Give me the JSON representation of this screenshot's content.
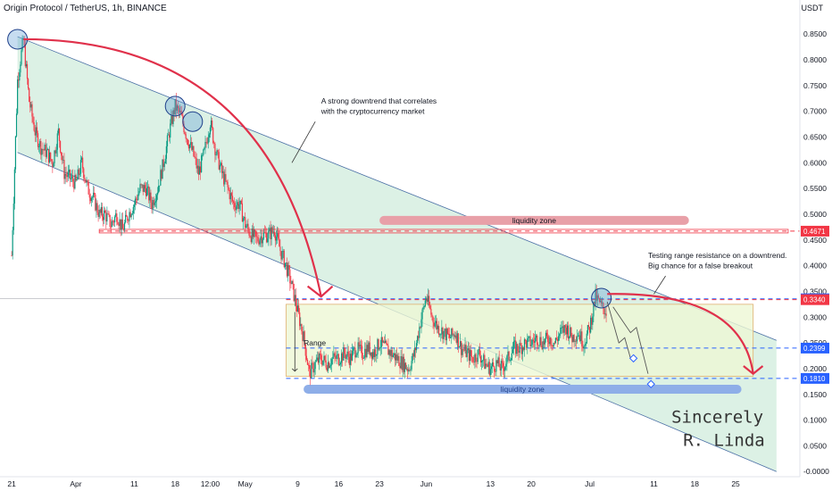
{
  "header": {
    "symbol": "Origin Protocol / TetherUS, 1h, BINANCE",
    "currency": "USDT"
  },
  "chart_data": {
    "type": "candlestick",
    "y_axis": {
      "ticks": [
        -0.0,
        0.05,
        0.1,
        0.15,
        0.2,
        0.25,
        0.3,
        0.35,
        0.4,
        0.45,
        0.5,
        0.55,
        0.6,
        0.65,
        0.7,
        0.75,
        0.8,
        0.85
      ],
      "tick_labels": [
        "-0.0000",
        "0.0500",
        "0.1000",
        "0.1500",
        "0.2000",
        "0.2500",
        "0.3000",
        "0.3500",
        "0.4000",
        "0.4500",
        "0.5000",
        "0.5500",
        "0.6000",
        "0.6500",
        "0.7000",
        "0.7500",
        "0.8000",
        "0.8500"
      ],
      "ylim": [
        -0.01,
        0.885
      ]
    },
    "x_axis": {
      "labels": [
        "21",
        "Apr",
        "11",
        "18",
        "12:00",
        "May",
        "9",
        "16",
        "23",
        "Jun",
        "13",
        "20",
        "Jul",
        "11",
        "18",
        "25"
      ],
      "positions": [
        0,
        11,
        21,
        28,
        34,
        40,
        49,
        56,
        63,
        71,
        82,
        89,
        99,
        110,
        117,
        124
      ],
      "xlim": [
        -2,
        135
      ]
    },
    "price_path": [
      [
        0,
        0.42
      ],
      [
        1,
        0.76
      ],
      [
        2,
        0.84
      ],
      [
        3,
        0.72
      ],
      [
        4,
        0.66
      ],
      [
        5,
        0.63
      ],
      [
        6,
        0.62
      ],
      [
        7,
        0.6
      ],
      [
        8,
        0.66
      ],
      [
        9,
        0.58
      ],
      [
        10,
        0.57
      ],
      [
        11,
        0.56
      ],
      [
        12,
        0.6
      ],
      [
        13,
        0.55
      ],
      [
        14,
        0.53
      ],
      [
        15,
        0.5
      ],
      [
        16,
        0.5
      ],
      [
        17,
        0.48
      ],
      [
        18,
        0.5
      ],
      [
        19,
        0.47
      ],
      [
        20,
        0.5
      ],
      [
        21,
        0.52
      ],
      [
        22,
        0.55
      ],
      [
        23,
        0.55
      ],
      [
        24,
        0.52
      ],
      [
        25,
        0.55
      ],
      [
        26,
        0.6
      ],
      [
        27,
        0.66
      ],
      [
        28,
        0.71
      ],
      [
        29,
        0.69
      ],
      [
        30,
        0.65
      ],
      [
        31,
        0.62
      ],
      [
        32,
        0.58
      ],
      [
        33,
        0.62
      ],
      [
        34,
        0.68
      ],
      [
        35,
        0.62
      ],
      [
        36,
        0.58
      ],
      [
        37,
        0.55
      ],
      [
        38,
        0.52
      ],
      [
        39,
        0.52
      ],
      [
        40,
        0.48
      ],
      [
        41,
        0.46
      ],
      [
        42,
        0.45
      ],
      [
        43,
        0.46
      ],
      [
        44,
        0.46
      ],
      [
        45,
        0.47
      ],
      [
        46,
        0.43
      ],
      [
        47,
        0.4
      ],
      [
        48,
        0.36
      ],
      [
        49,
        0.31
      ],
      [
        50,
        0.26
      ],
      [
        51,
        0.19
      ],
      [
        52,
        0.21
      ],
      [
        53,
        0.22
      ],
      [
        54,
        0.21
      ],
      [
        55,
        0.22
      ],
      [
        56,
        0.22
      ],
      [
        57,
        0.23
      ],
      [
        58,
        0.22
      ],
      [
        59,
        0.24
      ],
      [
        60,
        0.23
      ],
      [
        61,
        0.24
      ],
      [
        62,
        0.23
      ],
      [
        63,
        0.25
      ],
      [
        64,
        0.24
      ],
      [
        65,
        0.23
      ],
      [
        66,
        0.22
      ],
      [
        67,
        0.21
      ],
      [
        68,
        0.2
      ],
      [
        69,
        0.23
      ],
      [
        70,
        0.29
      ],
      [
        71,
        0.34
      ],
      [
        72,
        0.3
      ],
      [
        73,
        0.28
      ],
      [
        74,
        0.27
      ],
      [
        75,
        0.26
      ],
      [
        76,
        0.27
      ],
      [
        77,
        0.24
      ],
      [
        78,
        0.23
      ],
      [
        79,
        0.22
      ],
      [
        80,
        0.23
      ],
      [
        81,
        0.21
      ],
      [
        82,
        0.2
      ],
      [
        83,
        0.21
      ],
      [
        84,
        0.2
      ],
      [
        85,
        0.22
      ],
      [
        86,
        0.24
      ],
      [
        87,
        0.24
      ],
      [
        88,
        0.25
      ],
      [
        89,
        0.25
      ],
      [
        90,
        0.26
      ],
      [
        91,
        0.25
      ],
      [
        92,
        0.26
      ],
      [
        93,
        0.25
      ],
      [
        94,
        0.27
      ],
      [
        95,
        0.28
      ],
      [
        96,
        0.26
      ],
      [
        97,
        0.27
      ],
      [
        98,
        0.25
      ],
      [
        99,
        0.28
      ],
      [
        100,
        0.34
      ],
      [
        101,
        0.32
      ],
      [
        102,
        0.31
      ]
    ],
    "price_levels": [
      {
        "value": 0.4671,
        "label": "0.4671",
        "color": "#f23645"
      },
      {
        "value": 0.3357,
        "label": "0.3357",
        "color": "#2962ff"
      },
      {
        "value": 0.334,
        "label": "0.3340",
        "color": "#f23645"
      },
      {
        "value": 0.2399,
        "label": "0.2399",
        "color": "#2962ff"
      },
      {
        "value": 0.181,
        "label": "0.1810",
        "color": "#2962ff"
      }
    ],
    "channel": {
      "upper": [
        [
          1,
          0.845
        ],
        [
          131,
          0.255
        ]
      ],
      "lower": [
        [
          1,
          0.62
        ],
        [
          131,
          -0.0
        ]
      ]
    },
    "range_box": {
      "x": [
        47,
        127
      ],
      "y": [
        0.185,
        0.325
      ]
    },
    "zones": [
      {
        "label": "liquidity zone",
        "x": [
          63,
          116
        ],
        "y": 0.488,
        "color": "#e8a0a8",
        "text_color": "#131722"
      },
      {
        "label": "liquidity zone",
        "x": [
          50,
          125
        ],
        "y": 0.16,
        "color": "#8eaee8",
        "text_color": "#1e3f8a"
      }
    ],
    "annotations": [
      {
        "text": "A strong downtrend that correlates",
        "x": 53,
        "y": 0.715
      },
      {
        "text": "with the cryptocurrency market",
        "x": 53,
        "y": 0.695
      },
      {
        "text": "Testing range resistance on a downtrend.",
        "x": 109,
        "y": 0.415
      },
      {
        "text": "Big chance for a false breakout",
        "x": 109,
        "y": 0.395
      },
      {
        "text": "Range",
        "x": 50,
        "y": 0.245
      }
    ],
    "signature": [
      "Sincerely",
      "R. Linda"
    ],
    "colors": {
      "up": "#089981",
      "down": "#f23645",
      "arrow": "#e0314b",
      "channel": "#d6efe0",
      "range": "#eef7d5"
    }
  }
}
